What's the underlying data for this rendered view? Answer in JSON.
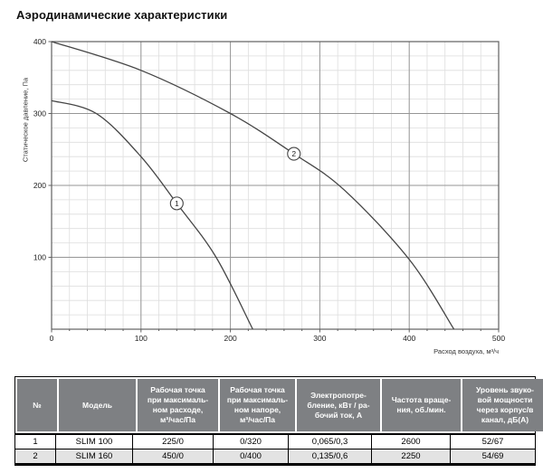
{
  "page": {
    "title": "Аэродинамические характеристики"
  },
  "chart_data": {
    "type": "line",
    "title": "Аэродинамические характеристики",
    "xlabel": "Расход воздуха, м³/ч",
    "ylabel": "Статическое давление, Па",
    "xlim": [
      0,
      500
    ],
    "ylim": [
      0,
      400
    ],
    "xticks": [
      0,
      100,
      200,
      300,
      400,
      500
    ],
    "yticks": [
      100,
      200,
      300,
      400
    ],
    "minor_step": 20,
    "grid": "major and minor gridlines on",
    "legend_position": "numbered circular markers on curves",
    "series": [
      {
        "name": "1",
        "model": "SLIM 100",
        "points": [
          [
            0,
            318
          ],
          [
            50,
            300
          ],
          [
            100,
            240
          ],
          [
            140,
            175
          ],
          [
            184,
            100
          ],
          [
            225,
            0
          ]
        ],
        "marker_at": [
          140,
          175
        ]
      },
      {
        "name": "2",
        "model": "SLIM 160",
        "points": [
          [
            0,
            400
          ],
          [
            100,
            360
          ],
          [
            200,
            300
          ],
          [
            271,
            244
          ],
          [
            327,
            194
          ],
          [
            400,
            97
          ],
          [
            450,
            0
          ]
        ],
        "marker_at": [
          271,
          244
        ]
      }
    ]
  },
  "table": {
    "columns": [
      {
        "title": "№"
      },
      {
        "title": "Модель"
      },
      {
        "title": "Рабочая точка\nпри максималь-\nном расходе,\nм³/час/Па"
      },
      {
        "title": "Рабочая точка\nпри максималь-\nном напоре,\nм³/час/Па"
      },
      {
        "title": "Электропотре-\nбление, кВт / ра-\nбочий ток, А"
      },
      {
        "title": "Частота враще-\nния, об./мин."
      },
      {
        "title": "Уровень звуко-\nвой мощности\nчерез корпус/в\nканал, дБ(А)"
      }
    ],
    "rows": [
      [
        "1",
        "SLIM 100",
        "225/0",
        "0/320",
        "0,065/0,3",
        "2600",
        "52/67"
      ],
      [
        "2",
        "SLIM 160",
        "450/0",
        "0/400",
        "0,135/0,6",
        "2250",
        "54/69"
      ]
    ]
  },
  "colors": {
    "header_bg": "#7e8083",
    "row_alt_bg": "#e3e3e3",
    "table_border": "#000000",
    "curve": "#454545",
    "plot_border": "#606060",
    "grid_major": "#969696",
    "grid_minor": "#dedede"
  }
}
